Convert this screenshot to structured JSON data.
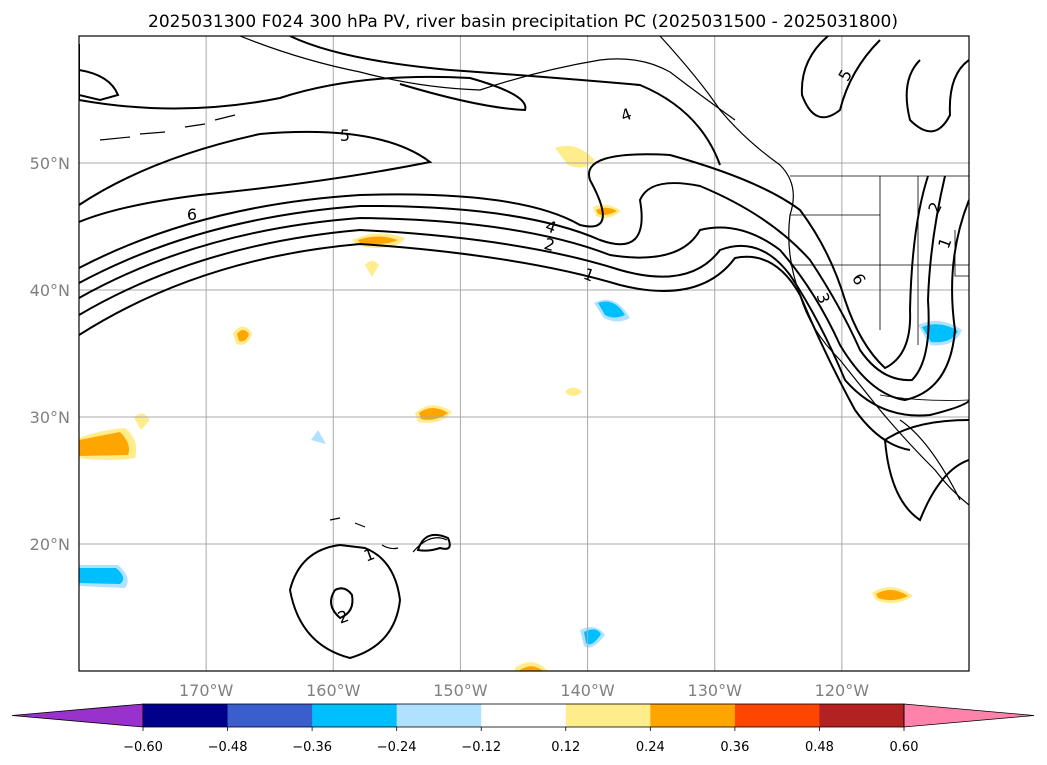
{
  "title": "2025031300 F024 300 hPa PV, river basin precipitation PC (2025031500 - 2025031800)",
  "map": {
    "lon_range": [
      -180,
      -110
    ],
    "lat_range": [
      10,
      60
    ],
    "lon_ticks": [
      {
        "value": -170,
        "label": "170°W"
      },
      {
        "value": -160,
        "label": "160°W"
      },
      {
        "value": -150,
        "label": "150°W"
      },
      {
        "value": -140,
        "label": "140°W"
      },
      {
        "value": -130,
        "label": "130°W"
      },
      {
        "value": -120,
        "label": "120°W"
      }
    ],
    "lat_ticks": [
      {
        "value": 20,
        "label": "20°N"
      },
      {
        "value": 30,
        "label": "30°N"
      },
      {
        "value": 40,
        "label": "40°N"
      },
      {
        "value": 50,
        "label": "50°N"
      }
    ],
    "gridlines": true,
    "contour_labels": [
      "4",
      "5",
      "6",
      "4",
      "2",
      "1",
      "5",
      "2",
      "1",
      "6",
      "3",
      "1",
      "2"
    ]
  },
  "colorbar": {
    "boundaries": [
      "−0.60",
      "−0.48",
      "−0.36",
      "−0.24",
      "−0.12",
      "0.12",
      "0.24",
      "0.36",
      "0.48",
      "0.60"
    ],
    "colors": [
      "#9932cc",
      "#00008b",
      "#3a5fcd",
      "#00bfff",
      "#b0e2ff",
      "#ffffff",
      "#ffec8b",
      "#ffa500",
      "#ff4500",
      "#b22222",
      "#ff82ab"
    ],
    "extend": "both"
  }
}
